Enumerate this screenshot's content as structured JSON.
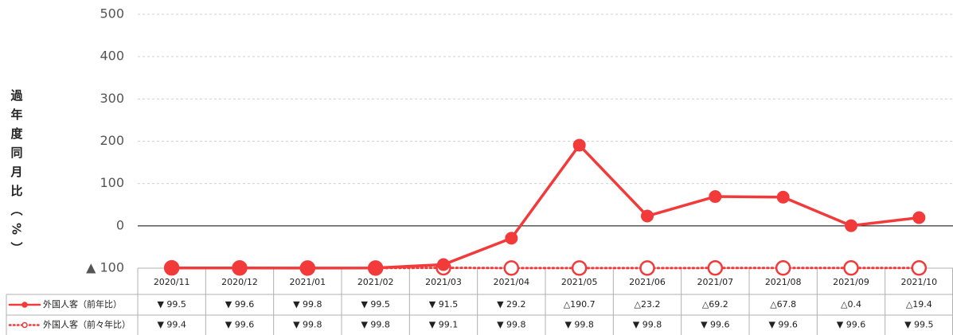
{
  "chart_data": {
    "type": "line",
    "y_label": "過年度同月比（%）",
    "categories": [
      "2020/11",
      "2020/12",
      "2021/01",
      "2021/02",
      "2021/03",
      "2021/04",
      "2021/05",
      "2021/06",
      "2021/07",
      "2021/08",
      "2021/09",
      "2021/10"
    ],
    "series": [
      {
        "name": "外国人客（前年比）",
        "color": "#f23a3a",
        "style": "solid",
        "values": [
          -99.5,
          -99.6,
          -99.8,
          -99.5,
          -91.5,
          -29.2,
          190.7,
          23.2,
          69.2,
          67.8,
          0.4,
          19.4
        ],
        "value_labels": [
          "▼ 99.5",
          "▼ 99.6",
          "▼ 99.8",
          "▼ 99.5",
          "▼ 91.5",
          "▼ 29.2",
          "△190.7",
          "△23.2",
          "△69.2",
          "△67.8",
          "△0.4",
          "△19.4"
        ]
      },
      {
        "name": "外国人客（前々年比）",
        "color": "#f23a3a",
        "style": "dotted",
        "values": [
          -99.4,
          -99.6,
          -99.8,
          -99.8,
          -99.1,
          -99.8,
          -99.8,
          -99.8,
          -99.6,
          -99.6,
          -99.6,
          -99.5
        ],
        "value_labels": [
          "▼ 99.4",
          "▼ 99.6",
          "▼ 99.8",
          "▼ 99.8",
          "▼ 99.1",
          "▼ 99.8",
          "▼ 99.8",
          "▼ 99.8",
          "▼ 99.6",
          "▼ 99.6",
          "▼ 99.6",
          "▼ 99.5"
        ]
      }
    ],
    "ylim": [
      -100,
      500
    ],
    "yticks": [
      {
        "value": -100,
        "label": "▲ 100"
      },
      0,
      100,
      200,
      300,
      400,
      500
    ],
    "grid": true
  }
}
